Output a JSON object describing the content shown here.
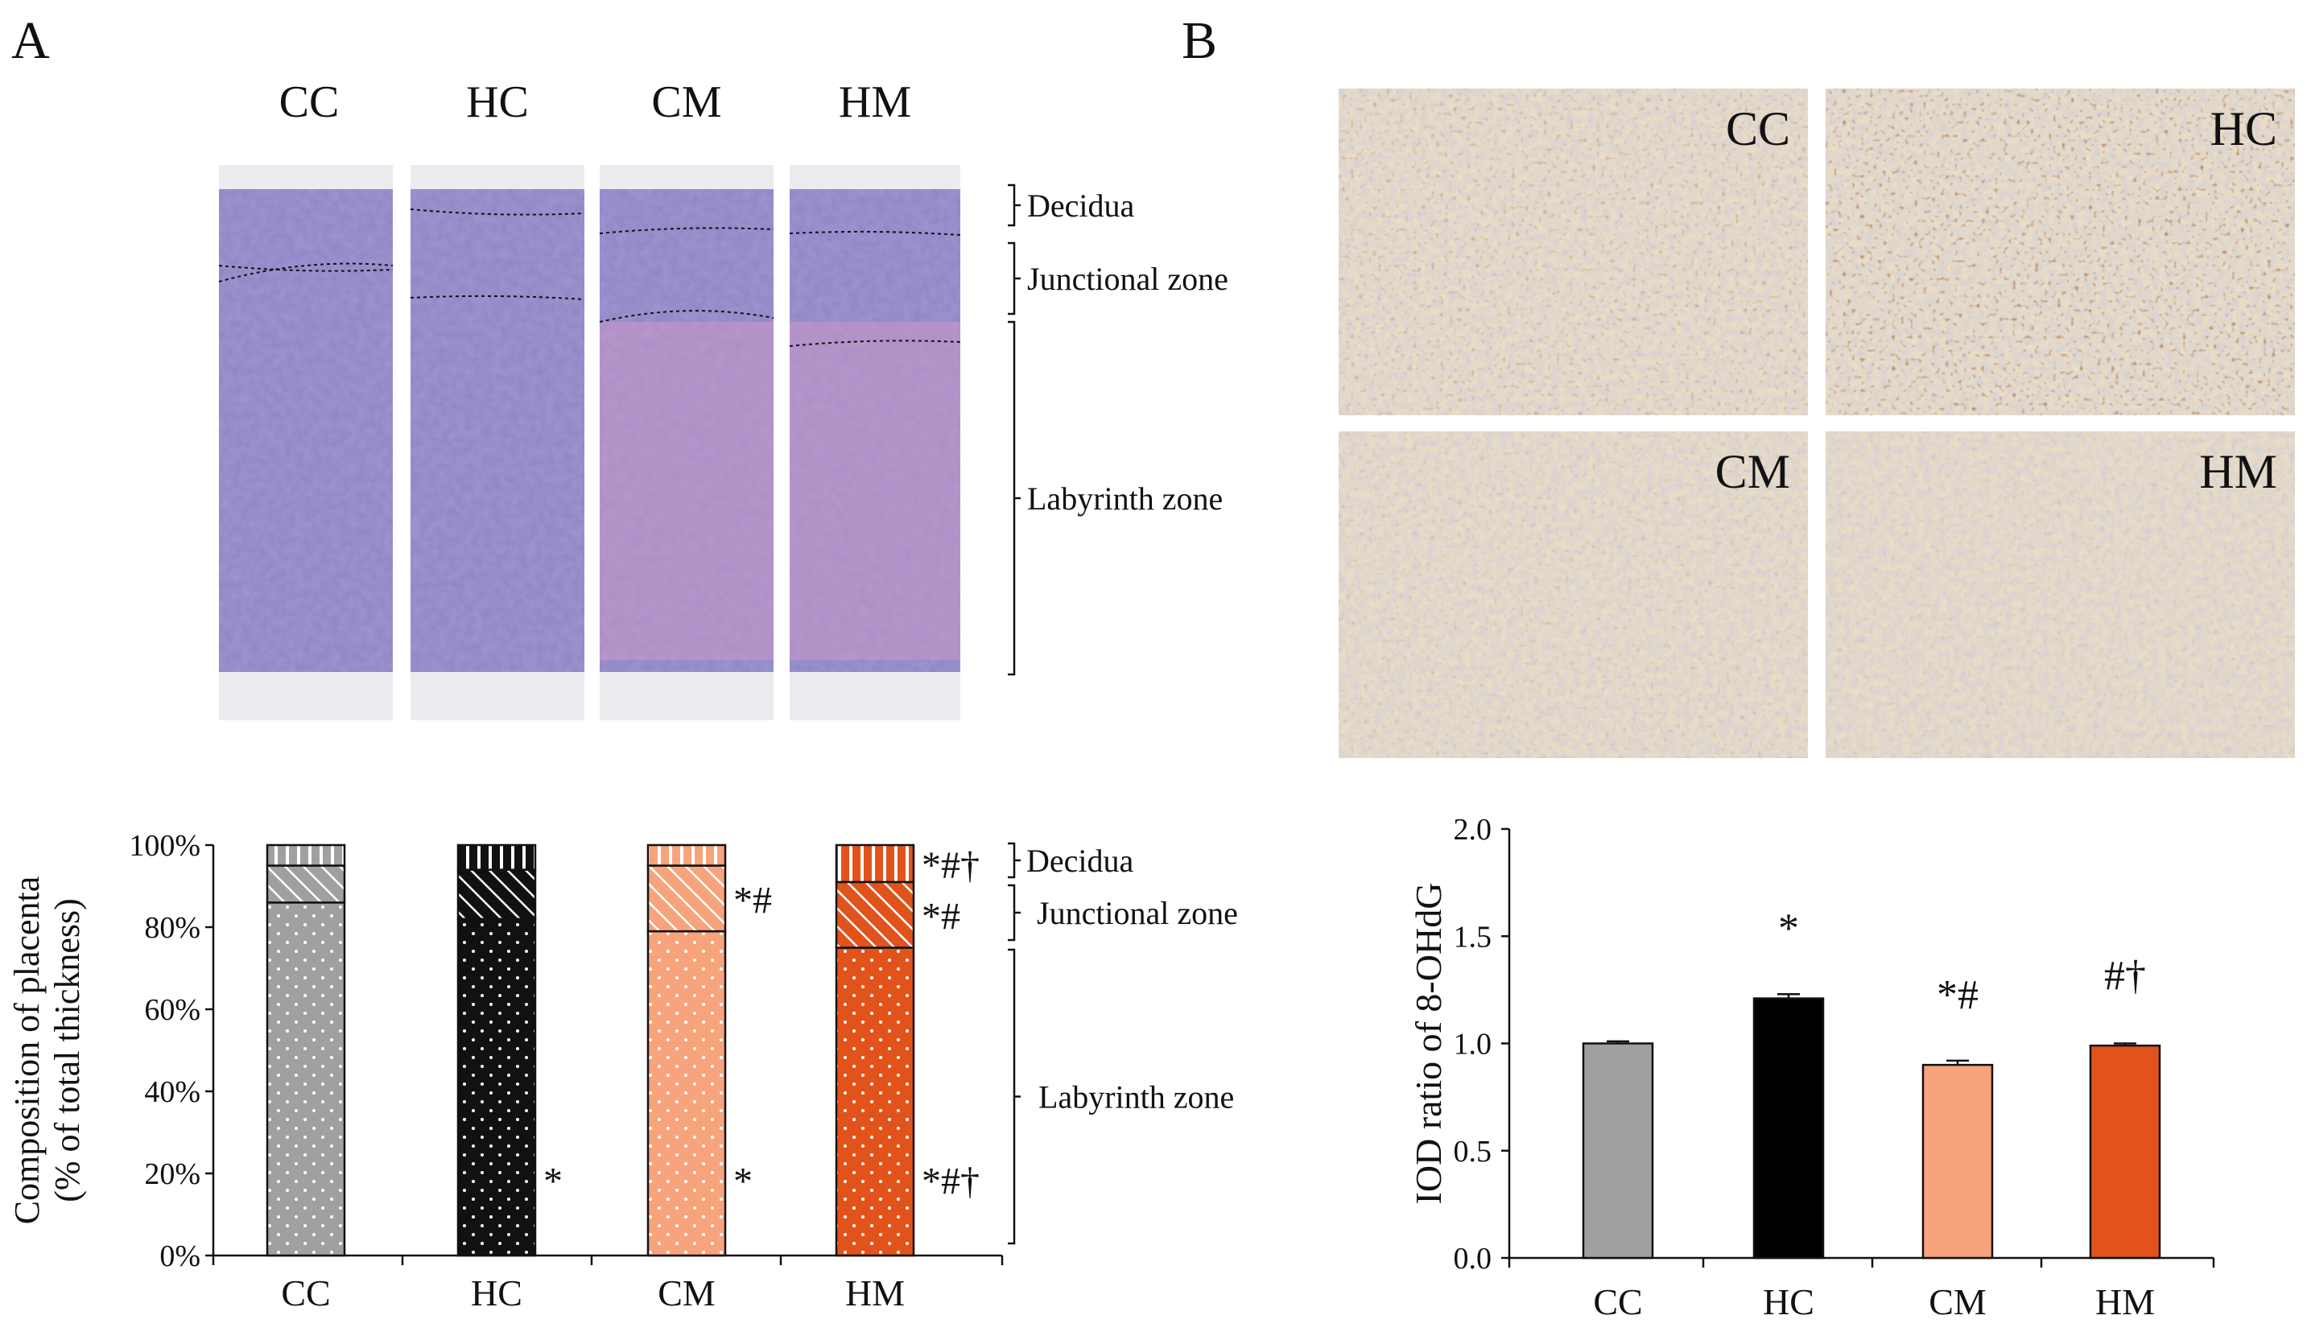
{
  "panels": {
    "a": {
      "label": "A",
      "histology_groups": [
        "CC",
        "HC",
        "CM",
        "HM"
      ],
      "zones": [
        "Decidua",
        "Junctional zone",
        "Labyrinth zone"
      ],
      "chart_data": {
        "type": "bar",
        "stacked": true,
        "categories": [
          "CC",
          "HC",
          "CM",
          "HM"
        ],
        "ylabel_line1": "Composition of placenta",
        "ylabel_line2": "(% of total thickness)",
        "yticks": [
          "0%",
          "20%",
          "40%",
          "60%",
          "80%",
          "100%"
        ],
        "ylim": [
          0,
          100
        ],
        "series": [
          {
            "name": "Labyrinth zone",
            "values": [
              86,
              82,
              79,
              75
            ]
          },
          {
            "name": "Junctional zone",
            "values": [
              9,
              12,
              16,
              16
            ]
          },
          {
            "name": "Decidua",
            "values": [
              5,
              6,
              5,
              9
            ]
          }
        ],
        "colors": [
          "#a0a0a0",
          "#111111",
          "#f7a37c",
          "#e2531b"
        ],
        "significance": {
          "decidua": [
            "",
            "",
            "",
            "*#†"
          ],
          "junctional": [
            "",
            "",
            "*#",
            "*#"
          ],
          "labyrinth": [
            "",
            "*",
            "*",
            "*#†"
          ]
        },
        "legend": [
          "Decidua",
          "Junctional zone",
          "Labyrinth zone"
        ]
      }
    },
    "b": {
      "label": "B",
      "ihc_groups": [
        "CC",
        "HC",
        "CM",
        "HM"
      ],
      "chart_data": {
        "type": "bar",
        "categories": [
          "CC",
          "HC",
          "CM",
          "HM"
        ],
        "values": [
          1.0,
          1.21,
          0.9,
          0.99
        ],
        "errors": [
          0.01,
          0.02,
          0.02,
          0.01
        ],
        "ylabel": "IOD ratio of 8-OHdG",
        "yticks": [
          "0.0",
          "0.5",
          "1.0",
          "1.5",
          "2.0"
        ],
        "ylim": [
          0,
          2.0
        ],
        "colors": [
          "#a0a0a0",
          "#000000",
          "#f7a37c",
          "#e2531b"
        ],
        "significance": [
          "",
          "*",
          "*#",
          "#†"
        ]
      }
    }
  }
}
